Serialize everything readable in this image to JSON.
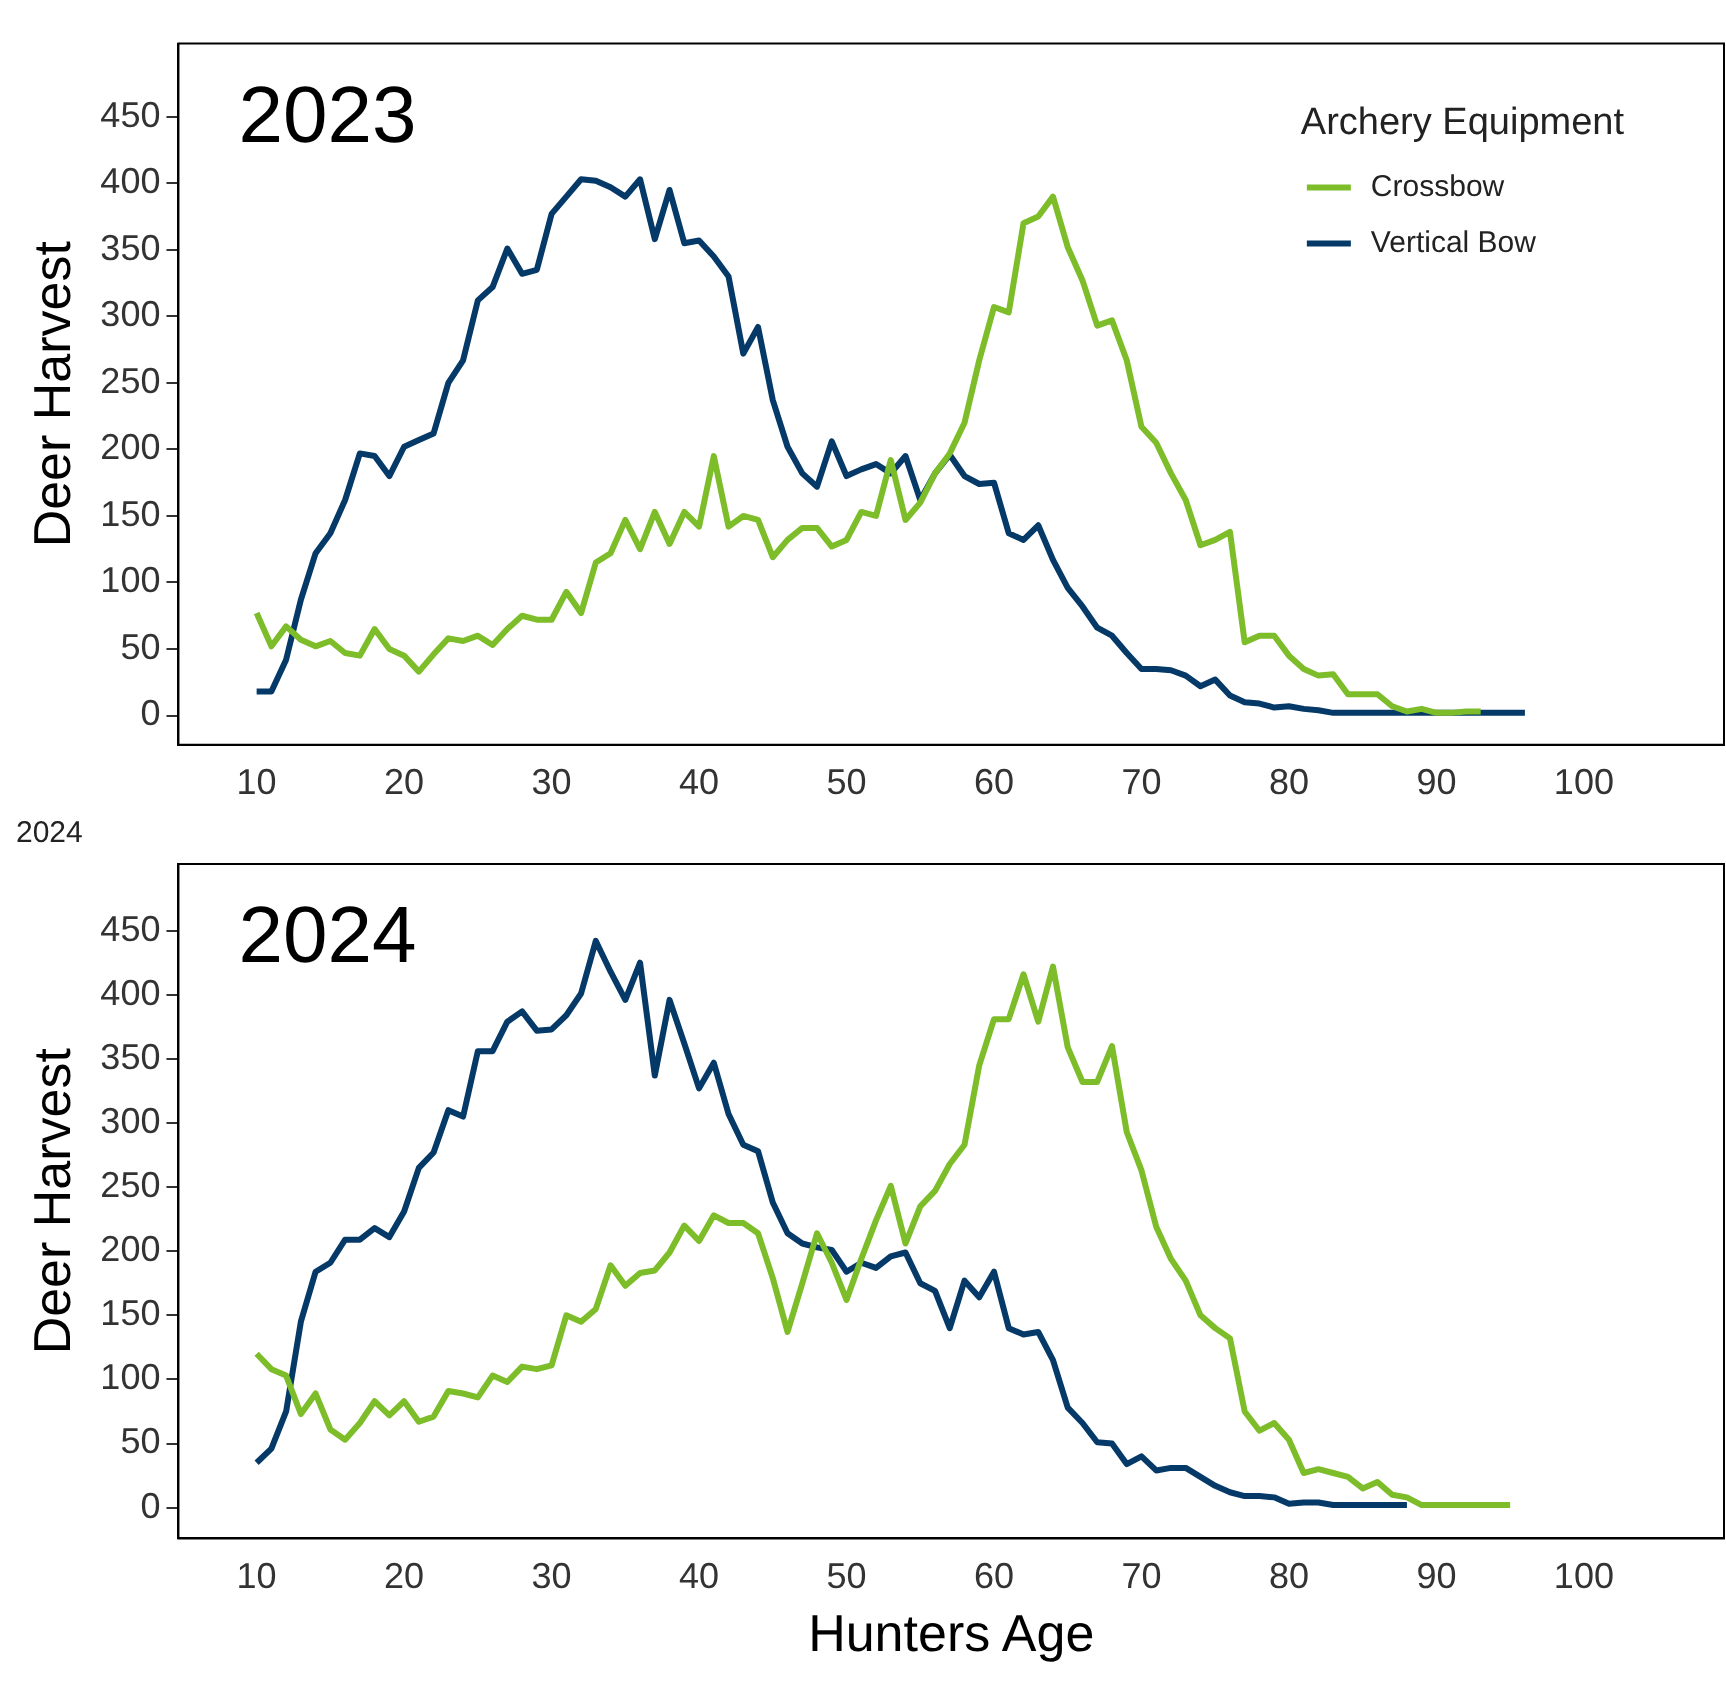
{
  "chart_data": [
    {
      "type": "line",
      "ylabel": "Deer Harvest",
      "annotations": [
        "2023"
      ],
      "legend_title": "Archery Equipment",
      "legend": "top right",
      "grid": false,
      "x": [
        10,
        11,
        12,
        13,
        14,
        15,
        16,
        17,
        18,
        19,
        20,
        21,
        22,
        23,
        24,
        25,
        26,
        27,
        28,
        29,
        30,
        31,
        32,
        33,
        34,
        35,
        36,
        37,
        38,
        39,
        40,
        41,
        42,
        43,
        44,
        45,
        46,
        47,
        48,
        49,
        50,
        51,
        52,
        53,
        54,
        55,
        56,
        57,
        58,
        59,
        60,
        61,
        62,
        63,
        64,
        65,
        66,
        67,
        68,
        69,
        70,
        71,
        72,
        73,
        74,
        75,
        76,
        77,
        78,
        79,
        80,
        81,
        82,
        83,
        84,
        85,
        86,
        87,
        88,
        89,
        90,
        91,
        92,
        93,
        94,
        95,
        96
      ],
      "xlim": [
        4.7,
        109.5
      ],
      "xticks": [
        10,
        20,
        30,
        40,
        50,
        60,
        70,
        80,
        90,
        100
      ],
      "ylim": [
        -22,
        505
      ],
      "yticks": [
        0,
        50,
        100,
        150,
        200,
        250,
        300,
        350,
        400,
        450
      ],
      "series": [
        {
          "name": "Crossbow",
          "color": "#7dbd2a",
          "values": [
            77,
            52,
            67,
            57,
            52,
            56,
            47,
            45,
            65,
            50,
            45,
            33,
            46,
            58,
            56,
            60,
            53,
            65,
            75,
            72,
            72,
            93,
            77,
            115,
            122,
            147,
            125,
            153,
            129,
            153,
            142,
            195,
            142,
            150,
            147,
            119,
            132,
            141,
            141,
            127,
            132,
            153,
            150,
            192,
            147,
            160,
            182,
            197,
            220,
            267,
            307,
            303,
            370,
            375,
            390,
            352,
            327,
            293,
            297,
            267,
            217,
            205,
            182,
            162,
            128,
            132,
            138,
            55,
            60,
            60,
            45,
            35,
            30,
            31,
            16,
            16,
            16,
            7,
            3,
            5,
            2,
            2,
            3,
            3,
            null,
            null,
            null
          ]
        },
        {
          "name": "Vertical Bow",
          "color": "#053a68",
          "values": [
            18,
            18,
            42,
            87,
            122,
            137,
            162,
            197,
            195,
            180,
            202,
            207,
            212,
            250,
            267,
            312,
            322,
            351,
            332,
            335,
            377,
            390,
            403,
            402,
            397,
            390,
            403,
            358,
            395,
            355,
            357,
            345,
            330,
            272,
            292,
            237,
            202,
            182,
            172,
            206,
            180,
            185,
            189,
            182,
            195,
            162,
            182,
            196,
            180,
            174,
            175,
            137,
            132,
            143,
            117,
            96,
            82,
            66,
            60,
            47,
            35,
            35,
            34,
            30,
            22,
            27,
            15,
            10,
            9,
            6,
            7,
            5,
            4,
            2,
            2,
            2,
            2,
            2,
            2,
            2,
            2,
            2,
            2,
            2,
            2,
            2,
            2
          ]
        }
      ]
    },
    {
      "type": "line",
      "subtitle": "2024",
      "ylabel": "Deer Harvest",
      "xlabel": "Hunters Age",
      "annotations": [
        "2024"
      ],
      "grid": false,
      "x": [
        10,
        11,
        12,
        13,
        14,
        15,
        16,
        17,
        18,
        19,
        20,
        21,
        22,
        23,
        24,
        25,
        26,
        27,
        28,
        29,
        30,
        31,
        32,
        33,
        34,
        35,
        36,
        37,
        38,
        39,
        40,
        41,
        42,
        43,
        44,
        45,
        46,
        47,
        48,
        49,
        50,
        51,
        52,
        53,
        54,
        55,
        56,
        57,
        58,
        59,
        60,
        61,
        62,
        63,
        64,
        65,
        66,
        67,
        68,
        69,
        70,
        71,
        72,
        73,
        74,
        75,
        76,
        77,
        78,
        79,
        80,
        81,
        82,
        83,
        84,
        85,
        86,
        87,
        88,
        89,
        90,
        91,
        92,
        93,
        94,
        95
      ],
      "xlim": [
        4.7,
        109.5
      ],
      "xticks": [
        10,
        20,
        30,
        40,
        50,
        60,
        70,
        80,
        90,
        100
      ],
      "ylim": [
        -24,
        502
      ],
      "yticks": [
        0,
        50,
        100,
        150,
        200,
        250,
        300,
        350,
        400,
        450
      ],
      "series": [
        {
          "color": "#7dbd2a",
          "values": [
            120,
            108,
            103,
            73,
            89,
            61,
            53,
            66,
            83,
            72,
            83,
            67,
            71,
            91,
            89,
            86,
            103,
            98,
            110,
            108,
            111,
            150,
            145,
            155,
            189,
            173,
            183,
            185,
            199,
            220,
            208,
            228,
            222,
            222,
            214,
            179,
            137,
            175,
            214,
            191,
            162,
            194,
            224,
            251,
            206,
            235,
            247,
            268,
            283,
            345,
            381,
            381,
            416,
            379,
            422,
            359,
            332,
            332,
            360,
            293,
            263,
            219,
            194,
            177,
            150,
            140,
            132,
            75,
            60,
            66,
            53,
            27,
            30,
            27,
            24,
            15,
            20,
            10,
            8,
            2,
            2,
            2,
            2,
            2,
            2,
            2
          ]
        },
        {
          "color": "#053a68",
          "values": [
            35,
            46,
            75,
            145,
            184,
            191,
            209,
            209,
            218,
            211,
            231,
            265,
            277,
            310,
            305,
            356,
            356,
            379,
            387,
            372,
            373,
            384,
            401,
            442,
            418,
            396,
            425,
            337,
            396,
            362,
            327,
            347,
            307,
            283,
            278,
            238,
            214,
            206,
            203,
            201,
            184,
            191,
            187,
            196,
            199,
            175,
            169,
            140,
            177,
            164,
            184,
            140,
            135,
            137,
            115,
            78,
            66,
            51,
            50,
            34,
            40,
            29,
            31,
            31,
            24,
            17,
            12,
            9,
            9,
            8,
            3,
            4,
            4,
            2,
            2,
            2,
            2,
            2,
            2,
            null,
            null,
            null,
            null,
            null,
            null,
            null
          ]
        }
      ]
    }
  ]
}
